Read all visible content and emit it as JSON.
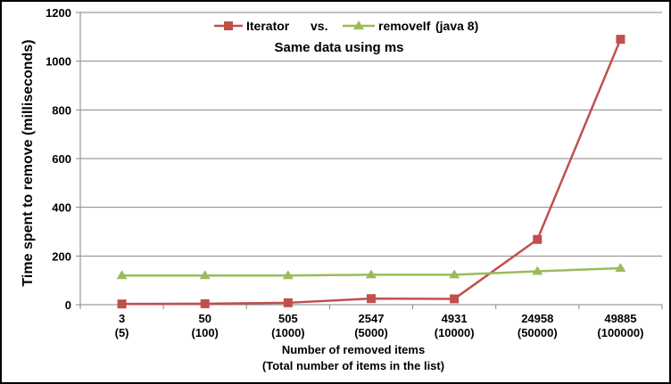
{
  "chart_data": {
    "type": "line",
    "categories": [
      [
        "3",
        "(5)"
      ],
      [
        "50",
        "(100)"
      ],
      [
        "505",
        "(1000)"
      ],
      [
        "2547",
        "(5000)"
      ],
      [
        "4931",
        "(10000)"
      ],
      [
        "24958",
        "(50000)"
      ],
      [
        "49885",
        "(100000)"
      ]
    ],
    "series": [
      {
        "name": "Iterator",
        "color": "#c0504d",
        "marker": "square",
        "values": [
          3,
          4,
          8,
          25,
          24,
          268,
          1090
        ]
      },
      {
        "name": "removeIf (java 8)",
        "color": "#9bbb59",
        "marker": "triangle",
        "values": [
          120,
          120,
          120,
          123,
          123,
          137,
          150
        ]
      }
    ],
    "legend": {
      "iterator_label": "Iterator",
      "vs_label": "vs.",
      "removeif_label": "removeIf",
      "java_label": "(java 8)",
      "placement": "top-center"
    },
    "subtitle": "Same data using ms",
    "ylabel": "Time spent to remove (milliseconds)",
    "xlabel_line1": "Number of removed items",
    "xlabel_line2": "(Total number of items in the list)",
    "ylim": [
      0,
      1200
    ],
    "yticks": [
      0,
      200,
      400,
      600,
      800,
      1000,
      1200
    ],
    "grid": true
  }
}
